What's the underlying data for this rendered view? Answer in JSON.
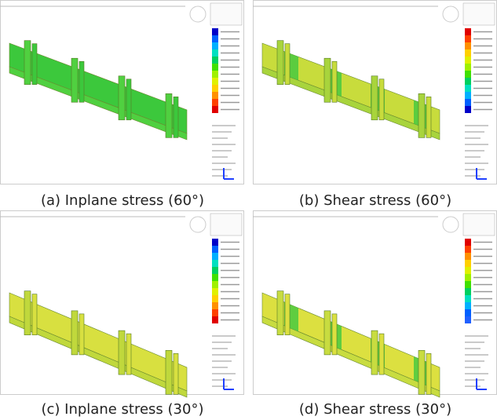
{
  "figure": {
    "panels": [
      {
        "caption": "(a) Inplane stress (60°)"
      },
      {
        "caption": "(b) Shear stress (60°)"
      },
      {
        "caption": "(c) Inplane stress (30°)"
      },
      {
        "caption": "(d) Shear stress (30°)"
      }
    ]
  }
}
